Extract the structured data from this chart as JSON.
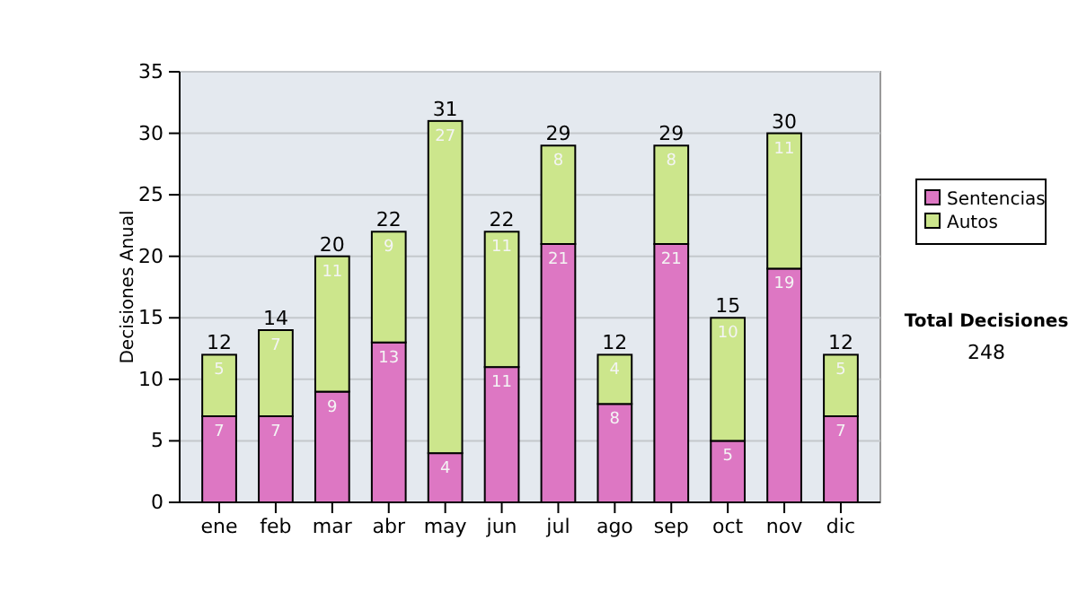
{
  "chart_data": {
    "type": "bar",
    "ylabel": "Decisiones Anual",
    "categories": [
      "ene",
      "feb",
      "mar",
      "abr",
      "may",
      "jun",
      "jul",
      "ago",
      "sep",
      "oct",
      "nov",
      "dic"
    ],
    "series": [
      {
        "name": "Sentencias",
        "color": "#dd77c3",
        "values": [
          7,
          7,
          9,
          13,
          4,
          11,
          21,
          8,
          21,
          5,
          19,
          7
        ]
      },
      {
        "name": "Autos",
        "color": "#cce68c",
        "values": [
          5,
          7,
          11,
          9,
          27,
          11,
          8,
          4,
          8,
          10,
          11,
          5
        ]
      }
    ],
    "stacked": true,
    "data_labels": true,
    "totals": [
      "12",
      "14",
      "20",
      "22",
      "31",
      "22",
      "29",
      "12",
      "29",
      "15",
      "30",
      "12"
    ],
    "ylim": [
      0,
      35
    ],
    "yticks": [
      0,
      5,
      10,
      15,
      20,
      25,
      30,
      35
    ],
    "grid": "y",
    "legend": "right",
    "annotations": [
      "Total Decisiones",
      "248"
    ]
  }
}
